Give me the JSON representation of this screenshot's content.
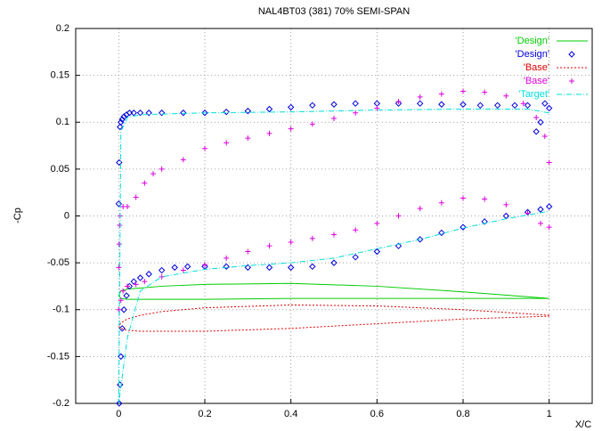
{
  "chart_data": {
    "type": "line",
    "title": "NAL4BT03 (381)  70% SEMI-SPAN",
    "x_label": "X/C",
    "y_label": "-Cp",
    "xlim": [
      -0.1,
      1.1
    ],
    "ylim": [
      -0.2,
      0.2
    ],
    "xticks": [
      0,
      0.2,
      0.4,
      0.6,
      0.8,
      1
    ],
    "yticks": [
      -0.2,
      -0.15,
      -0.1,
      -0.05,
      0,
      0.05,
      0.1,
      0.15,
      0.2
    ],
    "grid": true,
    "legend": "upper right",
    "series": [
      {
        "name": "'Design'",
        "color": "#00cc00",
        "style": "line",
        "dash": "solid",
        "x": [
          1,
          0.8,
          0.6,
          0.4,
          0.2,
          0.1,
          0.05,
          0.02,
          0.005,
          0,
          0.005,
          0.02,
          0.05,
          0.1,
          0.2,
          0.4,
          0.6,
          0.8,
          1
        ],
        "values": [
          -0.088,
          -0.081,
          -0.075,
          -0.072,
          -0.073,
          -0.075,
          -0.077,
          -0.078,
          -0.08,
          -0.085,
          -0.088,
          -0.089,
          -0.089,
          -0.089,
          -0.089,
          -0.088,
          -0.088,
          -0.088,
          -0.088
        ]
      },
      {
        "name": "'Design'",
        "color": "#0000dd",
        "style": "points",
        "marker": "diamond",
        "x": [
          1.0,
          0.99,
          0.98,
          0.97,
          0.95,
          0.92,
          0.88,
          0.84,
          0.8,
          0.75,
          0.7,
          0.65,
          0.6,
          0.55,
          0.5,
          0.45,
          0.4,
          0.35,
          0.3,
          0.25,
          0.2,
          0.15,
          0.1,
          0.07,
          0.05,
          0.035,
          0.025,
          0.018,
          0.012,
          0.008,
          0.005,
          0.003,
          0.001,
          0.0,
          0.001,
          0.003,
          0.005,
          0.008,
          0.012,
          0.018,
          0.025,
          0.035,
          0.05,
          0.07,
          0.1,
          0.13,
          0.16,
          0.2,
          0.25,
          0.3,
          0.35,
          0.4,
          0.45,
          0.5,
          0.55,
          0.6,
          0.65,
          0.7,
          0.75,
          0.8,
          0.85,
          0.9,
          0.95,
          0.98,
          1.0
        ],
        "values": [
          0.115,
          0.12,
          0.1,
          0.09,
          0.118,
          0.118,
          0.118,
          0.118,
          0.119,
          0.119,
          0.12,
          0.12,
          0.12,
          0.12,
          0.119,
          0.118,
          0.116,
          0.114,
          0.112,
          0.111,
          0.11,
          0.11,
          0.11,
          0.11,
          0.11,
          0.11,
          0.11,
          0.108,
          0.106,
          0.103,
          0.1,
          0.095,
          0.057,
          0.013,
          -0.2,
          -0.18,
          -0.15,
          -0.12,
          -0.1,
          -0.085,
          -0.075,
          -0.07,
          -0.066,
          -0.062,
          -0.058,
          -0.055,
          -0.054,
          -0.054,
          -0.054,
          -0.055,
          -0.055,
          -0.055,
          -0.054,
          -0.05,
          -0.044,
          -0.038,
          -0.032,
          -0.025,
          -0.018,
          -0.012,
          -0.006,
          0.0,
          0.004,
          0.007,
          0.01
        ]
      },
      {
        "name": "'Base'",
        "color": "#dd0000",
        "style": "line",
        "dash": "dotted",
        "x": [
          1,
          0.8,
          0.6,
          0.4,
          0.2,
          0.1,
          0.05,
          0.02,
          0.005,
          0,
          0.005,
          0.02,
          0.05,
          0.1,
          0.2,
          0.4,
          0.6,
          0.8,
          1
        ],
        "values": [
          -0.106,
          -0.1,
          -0.096,
          -0.095,
          -0.098,
          -0.102,
          -0.106,
          -0.11,
          -0.114,
          -0.118,
          -0.12,
          -0.122,
          -0.123,
          -0.123,
          -0.123,
          -0.12,
          -0.115,
          -0.11,
          -0.107
        ]
      },
      {
        "name": "'Base'",
        "color": "#dd00dd",
        "style": "points",
        "marker": "plus",
        "x": [
          0.0,
          0.001,
          0.002,
          0.003,
          0.01,
          0.02,
          0.04,
          0.06,
          0.08,
          0.1,
          0.15,
          0.2,
          0.25,
          0.3,
          0.35,
          0.4,
          0.45,
          0.5,
          0.55,
          0.6,
          0.65,
          0.7,
          0.75,
          0.8,
          0.85,
          0.9,
          0.94,
          0.97,
          0.99,
          1.0,
          0.0,
          0.005,
          0.01,
          0.02,
          0.04,
          0.06,
          0.1,
          0.15,
          0.2,
          0.25,
          0.3,
          0.35,
          0.4,
          0.45,
          0.5,
          0.55,
          0.6,
          0.65,
          0.7,
          0.75,
          0.8,
          0.85,
          0.9,
          0.95,
          0.98,
          1.0
        ],
        "values": [
          -0.055,
          -0.03,
          -0.01,
          0.0,
          0.01,
          0.01,
          0.02,
          0.035,
          0.045,
          0.05,
          0.06,
          0.072,
          0.078,
          0.083,
          0.088,
          0.093,
          0.098,
          0.104,
          0.11,
          0.115,
          0.122,
          0.127,
          0.13,
          0.133,
          0.132,
          0.128,
          0.12,
          0.105,
          0.085,
          0.057,
          -0.1,
          -0.09,
          -0.08,
          -0.075,
          -0.073,
          -0.07,
          -0.065,
          -0.058,
          -0.052,
          -0.045,
          -0.038,
          -0.032,
          -0.028,
          -0.024,
          -0.02,
          -0.015,
          -0.008,
          0.0,
          0.008,
          0.014,
          0.019,
          0.018,
          0.012,
          0.003,
          -0.008,
          -0.012
        ]
      },
      {
        "name": "'Target'",
        "color": "#00dddd",
        "style": "line",
        "dash": "dashdot",
        "x": [
          1.0,
          0.95,
          0.8,
          0.6,
          0.4,
          0.2,
          0.05,
          0.02,
          0.005,
          0.0,
          0.02,
          0.05,
          0.1,
          0.2,
          0.3,
          0.4,
          0.5,
          0.6,
          0.7,
          0.8,
          0.9,
          1.0
        ],
        "values": [
          0.11,
          0.114,
          0.114,
          0.113,
          0.111,
          0.11,
          0.108,
          0.105,
          0.09,
          -0.2,
          -0.13,
          -0.08,
          -0.065,
          -0.057,
          -0.053,
          -0.05,
          -0.045,
          -0.035,
          -0.025,
          -0.013,
          -0.003,
          0.005
        ]
      }
    ]
  }
}
